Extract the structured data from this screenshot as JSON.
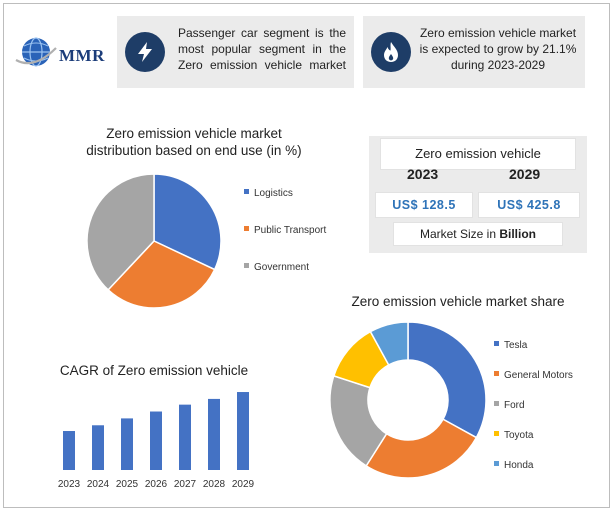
{
  "brand": {
    "name": "MMR"
  },
  "facts": [
    {
      "icon": "lightning-bolt-icon",
      "text": "Passenger car segment is the most popular segment in the Zero emission vehicle market"
    },
    {
      "icon": "flame-icon",
      "text": "Zero emission vehicle market is expected to grow by 21.1% during 2023-2029"
    }
  ],
  "market_size": {
    "title": "Zero emission vehicle",
    "years": [
      "2023",
      "2029"
    ],
    "values": [
      "US$ 128.5",
      "US$ 425.8"
    ],
    "caption_prefix": "Market Size in",
    "caption_unit": "Billion"
  },
  "colors": {
    "blue": "#4472c4",
    "orange": "#ed7d31",
    "gray": "#a5a5a5",
    "yellow": "#ffc000",
    "light_blue": "#5b9bd5",
    "navy": "#1e3d67",
    "value_blue": "#2e73b8"
  },
  "chart_data": [
    {
      "type": "pie",
      "title": "Zero emission vehicle market distribution based on end use (in %)",
      "categories": [
        "Logistics",
        "Public Transport",
        "Government"
      ],
      "values": [
        32,
        30,
        38
      ],
      "colors": [
        "#4472c4",
        "#ed7d31",
        "#a5a5a5"
      ],
      "legend": "right"
    },
    {
      "type": "donut",
      "title": "Zero emission vehicle market share",
      "categories": [
        "Tesla",
        "General Motors",
        "Ford",
        "Toyota",
        "Honda"
      ],
      "values": [
        33,
        26,
        21,
        12,
        8
      ],
      "colors": [
        "#4472c4",
        "#ed7d31",
        "#a5a5a5",
        "#ffc000",
        "#5b9bd5"
      ],
      "legend": "right"
    },
    {
      "type": "bar",
      "title": "CAGR of Zero emission vehicle",
      "categories": [
        "2023",
        "2024",
        "2025",
        "2026",
        "2027",
        "2028",
        "2029"
      ],
      "values": [
        34,
        39,
        45,
        51,
        57,
        62,
        68
      ],
      "ylim": [
        0,
        75
      ],
      "color": "#4472c4",
      "grid": false
    }
  ]
}
